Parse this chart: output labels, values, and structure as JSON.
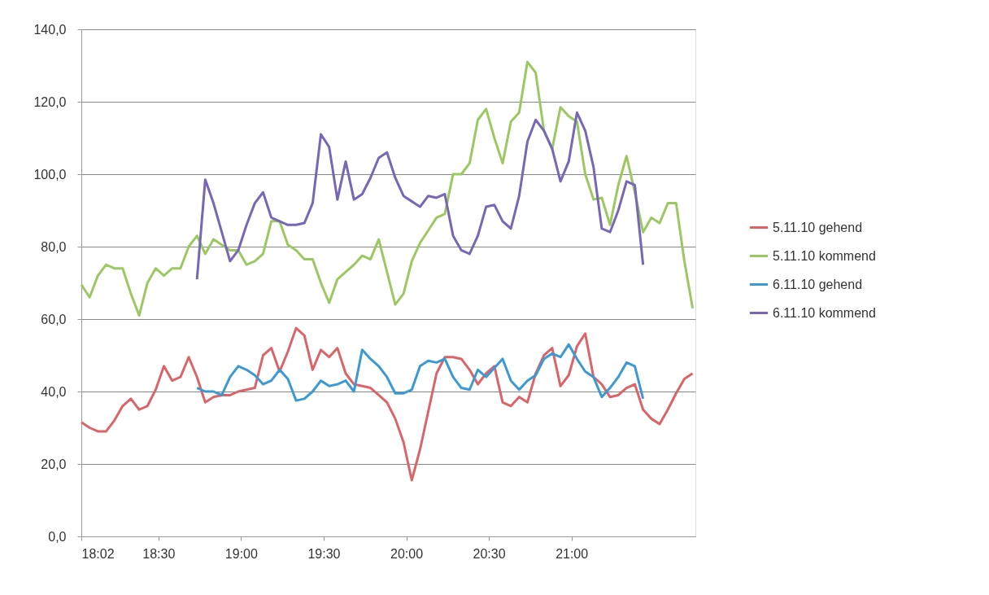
{
  "chart_data": {
    "type": "line",
    "x": [
      18.0333,
      18.0833,
      18.1333,
      18.1833,
      18.2333,
      18.2833,
      18.3333,
      18.3833,
      18.4333,
      18.4833,
      18.5333,
      18.5833,
      18.6333,
      18.6833,
      18.7333,
      18.7833,
      18.8333,
      18.8833,
      18.9333,
      18.9833,
      19.0333,
      19.0833,
      19.1333,
      19.1833,
      19.2333,
      19.2833,
      19.3333,
      19.3833,
      19.4333,
      19.4833,
      19.5333,
      19.5833,
      19.6333,
      19.6833,
      19.7333,
      19.7833,
      19.8333,
      19.8833,
      19.9333,
      19.9833,
      20.0333,
      20.0833,
      20.1333,
      20.1833,
      20.2333,
      20.2833,
      20.3333,
      20.3833,
      20.4333,
      20.4833,
      20.5333,
      20.5833,
      20.6333,
      20.6833,
      20.7333,
      20.7833,
      20.8333,
      20.8833,
      20.9333,
      20.9833,
      21.0333,
      21.0833,
      21.1333,
      21.1833,
      21.2333,
      21.2833,
      21.3333,
      21.3833,
      21.4333,
      21.4833,
      21.5333,
      21.5833,
      21.6333,
      21.6833,
      21.7333
    ],
    "series": [
      {
        "name": "5.11.10 gehend",
        "color": "#db6468",
        "values": [
          31.5,
          30,
          29,
          29,
          32,
          36,
          38,
          35,
          36,
          40.5,
          47,
          43,
          44,
          49.5,
          44,
          37,
          38.5,
          39,
          39,
          40,
          40.5,
          41,
          50,
          52,
          45.5,
          51,
          57.5,
          55.5,
          46,
          51.5,
          49.5,
          52,
          45,
          42,
          41.5,
          41,
          39,
          37,
          32.5,
          26,
          15.5,
          24,
          34.5,
          45,
          49.5,
          49.5,
          49,
          46,
          42,
          45,
          47,
          37,
          36,
          38.5,
          37,
          45,
          50,
          52,
          41.5,
          44.5,
          52.5,
          56,
          44,
          42,
          38.5,
          39,
          41,
          42,
          35,
          32.5,
          31,
          35,
          39.5,
          43.5,
          45
        ]
      },
      {
        "name": "5.11.10 kommend",
        "color": "#9cc862",
        "values": [
          69.5,
          66,
          72,
          75,
          74,
          74,
          67,
          61,
          70,
          74,
          72,
          74,
          74,
          80,
          83,
          78,
          82,
          80.5,
          79,
          79,
          75,
          76,
          78,
          87,
          87,
          80.5,
          79,
          76.5,
          76.5,
          70,
          64.5,
          71,
          73,
          75,
          77.5,
          76.5,
          82,
          73,
          64,
          67,
          76,
          81,
          84.5,
          88,
          89,
          100,
          100,
          103,
          115,
          118,
          110,
          103,
          114.5,
          117,
          131,
          128,
          112,
          107,
          118.5,
          116,
          114.5,
          100,
          93,
          93.5,
          86,
          97,
          105,
          95,
          84,
          88,
          86.5,
          92,
          92,
          76,
          63
        ]
      },
      {
        "name": "6.11.10 gehend",
        "color": "#3b99d4",
        "values": [
          null,
          null,
          null,
          null,
          null,
          null,
          null,
          null,
          null,
          null,
          null,
          null,
          null,
          null,
          41,
          40,
          40,
          39,
          44,
          47,
          46,
          44.5,
          42,
          43,
          46,
          43.5,
          37.5,
          38,
          40,
          43,
          41.5,
          42,
          43,
          40,
          51.5,
          49,
          47,
          44,
          39.5,
          39.5,
          40.5,
          47,
          48.5,
          48,
          49,
          44,
          41,
          40.5,
          46,
          44,
          46.5,
          49,
          43,
          40.5,
          43,
          44.5,
          49,
          50.5,
          49.5,
          53,
          49,
          45.5,
          44,
          38.5,
          41,
          44,
          48,
          47,
          38,
          null,
          null,
          null,
          null,
          null,
          null
        ]
      },
      {
        "name": "6.11.10 kommend",
        "color": "#7866b6",
        "values": [
          null,
          null,
          null,
          null,
          null,
          null,
          null,
          null,
          null,
          null,
          null,
          null,
          null,
          null,
          71,
          98.5,
          92,
          84,
          76,
          79,
          86,
          92,
          95,
          88,
          87,
          86,
          86,
          86.5,
          92,
          111,
          107.5,
          93,
          103.5,
          93,
          94.5,
          99,
          104.5,
          106,
          99,
          94,
          92.5,
          91,
          94,
          93.5,
          94.5,
          83,
          79,
          78,
          83,
          91,
          91.5,
          87,
          85,
          94,
          109,
          115,
          112,
          107,
          98,
          103.5,
          117,
          112,
          102,
          85,
          84,
          90,
          98,
          97,
          75,
          null,
          null,
          null,
          null,
          null,
          null
        ]
      }
    ],
    "xlim": [
      18.0333,
      21.75
    ],
    "xticks": [
      {
        "value": 18.0333,
        "label": "18:02"
      },
      {
        "value": 18.5,
        "label": "18:30"
      },
      {
        "value": 19,
        "label": "19:00"
      },
      {
        "value": 19.5,
        "label": "19:30"
      },
      {
        "value": 20,
        "label": "20:00"
      },
      {
        "value": 20.5,
        "label": "20:30"
      },
      {
        "value": 21,
        "label": "21:00"
      }
    ],
    "ylim": [
      0,
      140
    ],
    "yticks": [
      {
        "value": 0,
        "label": "0,0"
      },
      {
        "value": 20,
        "label": "20,0"
      },
      {
        "value": 40,
        "label": "40,0"
      },
      {
        "value": 60,
        "label": "60,0"
      },
      {
        "value": 80,
        "label": "80,0"
      },
      {
        "value": 100,
        "label": "100,0"
      },
      {
        "value": 120,
        "label": "120,0"
      },
      {
        "value": 140,
        "label": "140,0"
      }
    ],
    "grid": "y",
    "legend": "right",
    "marker": "none",
    "line_style": "solid"
  }
}
